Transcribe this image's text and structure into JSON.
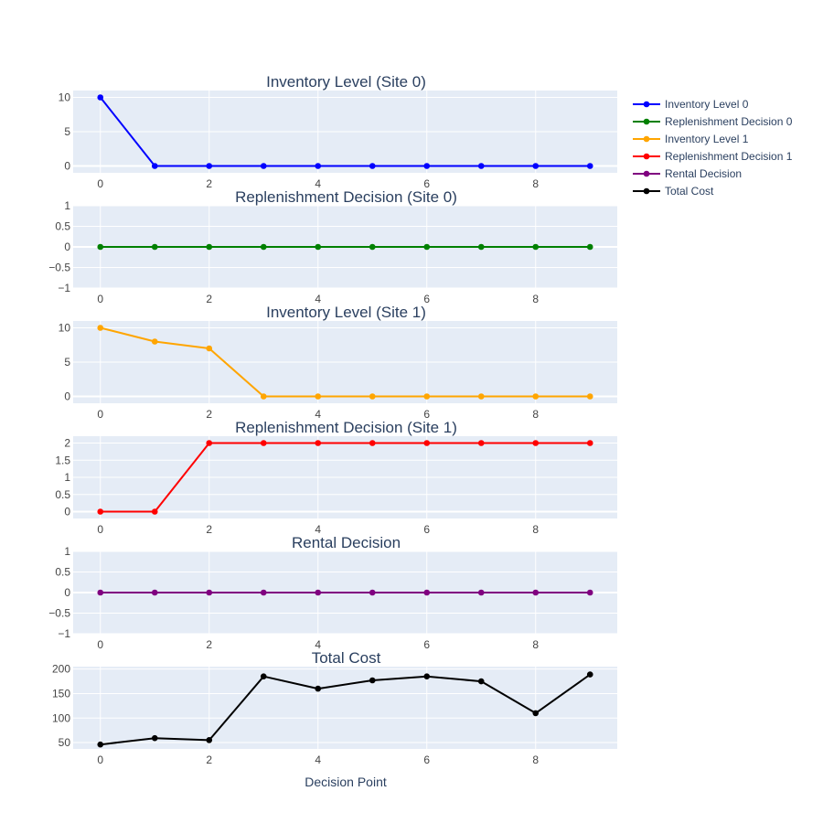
{
  "chart_data": {
    "type": "line",
    "xlabel": "Decision Point",
    "x": [
      0,
      1,
      2,
      3,
      4,
      5,
      6,
      7,
      8,
      9
    ],
    "xlim": [
      -0.5,
      9.5
    ],
    "x_ticks": [
      0,
      2,
      4,
      6,
      8
    ],
    "grid": true,
    "legend_position": "top-right",
    "plot_background": "#e5ecf6",
    "panels": [
      {
        "title": "Inventory Level (Site 0)",
        "ylim": [
          -1,
          11
        ],
        "y_ticks": [
          0,
          5,
          10
        ],
        "series": [
          {
            "name": "Inventory Level 0",
            "color": "#0000ff",
            "values": [
              10,
              0,
              0,
              0,
              0,
              0,
              0,
              0,
              0,
              0
            ]
          }
        ]
      },
      {
        "title": "Replenishment Decision (Site 0)",
        "ylim": [
          -1,
          1
        ],
        "y_ticks": [
          1,
          0.5,
          0,
          -0.5,
          -1
        ],
        "y_tick_labels": [
          "1",
          "0.5",
          "0",
          "−0.5",
          "−1"
        ],
        "series": [
          {
            "name": "Replenishment Decision 0",
            "color": "#008000",
            "values": [
              0,
              0,
              0,
              0,
              0,
              0,
              0,
              0,
              0,
              0
            ]
          }
        ]
      },
      {
        "title": "Inventory Level (Site 1)",
        "ylim": [
          -1,
          11
        ],
        "y_ticks": [
          0,
          5,
          10
        ],
        "series": [
          {
            "name": "Inventory Level 1",
            "color": "#ffa500",
            "values": [
              10,
              8,
              7,
              0,
              0,
              0,
              0,
              0,
              0,
              0
            ]
          }
        ]
      },
      {
        "title": "Replenishment Decision (Site 1)",
        "ylim": [
          -0.2,
          2.2
        ],
        "y_ticks": [
          0,
          0.5,
          1,
          1.5,
          2
        ],
        "series": [
          {
            "name": "Replenishment Decision 1",
            "color": "#ff0000",
            "values": [
              0,
              0,
              2,
              2,
              2,
              2,
              2,
              2,
              2,
              2
            ]
          }
        ]
      },
      {
        "title": "Rental Decision",
        "ylim": [
          -1,
          1
        ],
        "y_ticks": [
          1,
          0.5,
          0,
          -0.5,
          -1
        ],
        "y_tick_labels": [
          "1",
          "0.5",
          "0",
          "−0.5",
          "−1"
        ],
        "series": [
          {
            "name": "Rental Decision",
            "color": "#800080",
            "values": [
              0,
              0,
              0,
              0,
              0,
              0,
              0,
              0,
              0,
              0
            ]
          }
        ]
      },
      {
        "title": "Total Cost",
        "ylim": [
          37,
          205
        ],
        "y_ticks": [
          50,
          100,
          150,
          200
        ],
        "series": [
          {
            "name": "Total Cost",
            "color": "#000000",
            "values": [
              46,
              59,
              55,
              185,
              160,
              177,
              185,
              175,
              110,
              189
            ]
          }
        ]
      }
    ]
  }
}
